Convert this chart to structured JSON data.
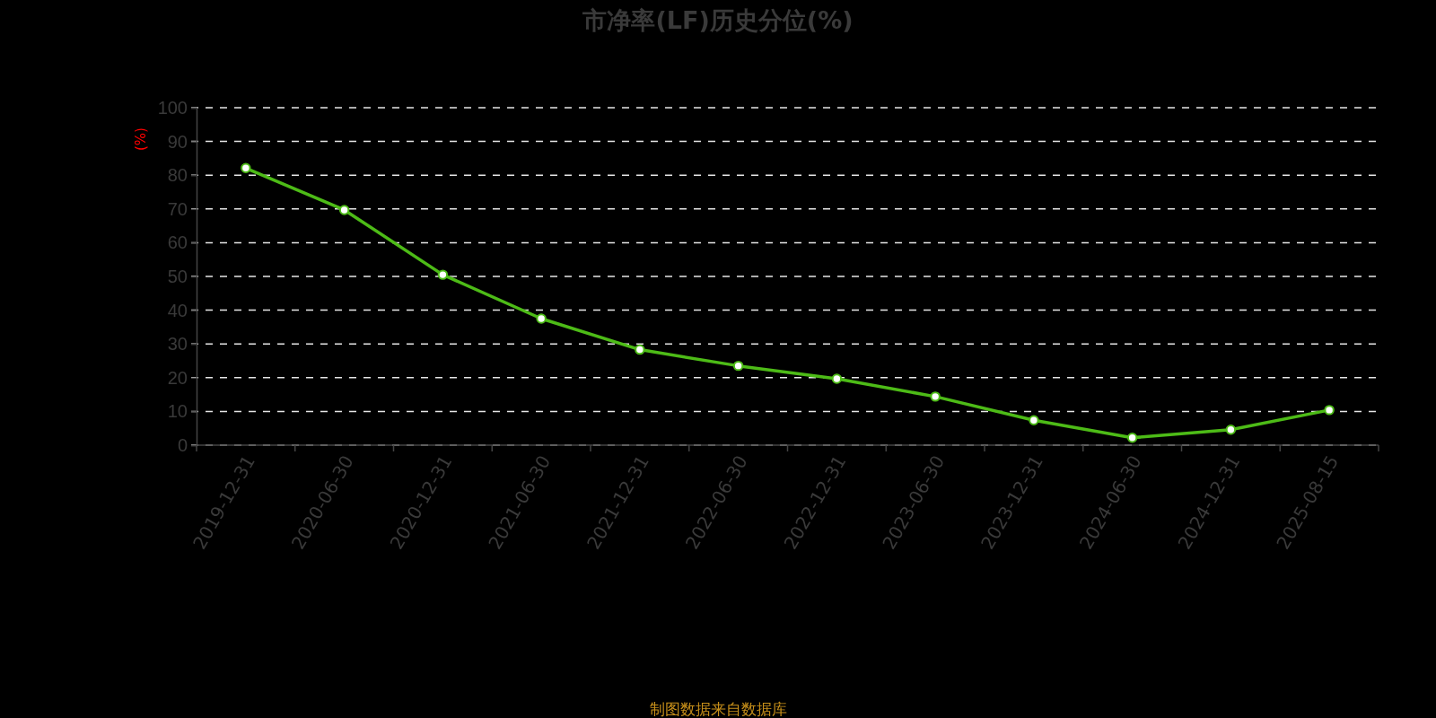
{
  "chart_data": {
    "type": "line",
    "title": "市净率(LF)历史分位(%)",
    "ylabel": "(%)",
    "categories": [
      "2019-12-31",
      "2020-06-30",
      "2020-12-31",
      "2021-06-30",
      "2021-12-31",
      "2022-06-30",
      "2022-12-31",
      "2023-06-30",
      "2023-12-31",
      "2024-06-30",
      "2024-12-31",
      "2025-08-15"
    ],
    "series": [
      {
        "color": "#4dbb17",
        "values": [
          82.1,
          69.7,
          50.5,
          37.5,
          28.3,
          23.5,
          19.7,
          14.4,
          7.4,
          2.2,
          4.6,
          10.4
        ]
      }
    ],
    "ylim": [
      0,
      100
    ],
    "yticks": [
      0,
      10,
      20,
      30,
      40,
      50,
      60,
      70,
      80,
      90,
      100
    ],
    "grid": "y",
    "marker": "circle",
    "line_style": "solid",
    "annotations": [
      "制图数据来自数据库"
    ]
  }
}
